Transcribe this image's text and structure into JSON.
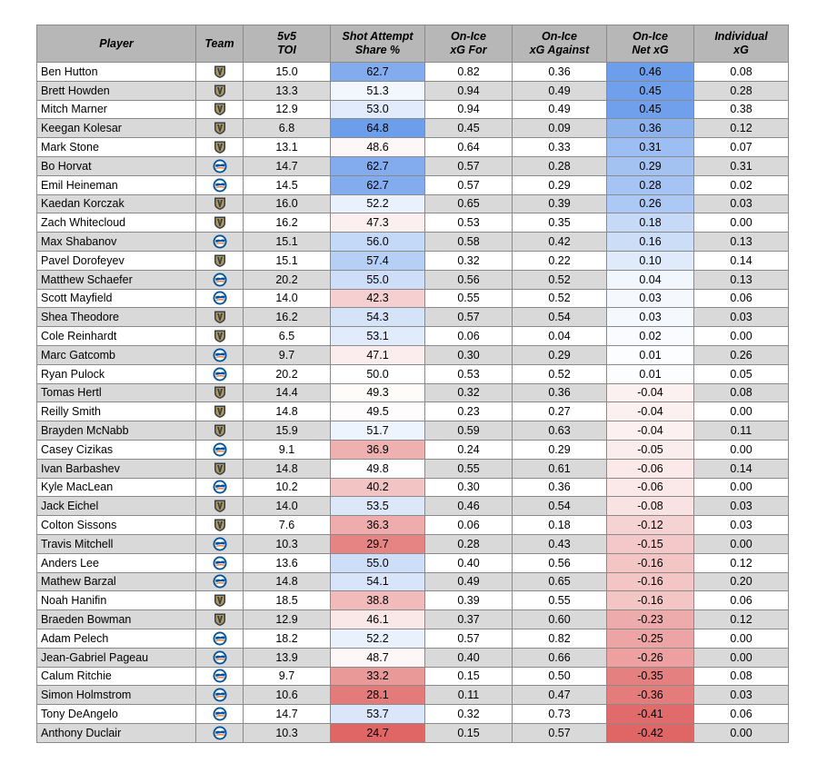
{
  "chart_data": {
    "type": "table",
    "columns": [
      "Player",
      "Team",
      "5v5\nTOI",
      "Shot Attempt\nShare %",
      "On-Ice\nxG For",
      "On-Ice\nxG Against",
      "On-Ice\nNet xG",
      "Individual\nxG"
    ],
    "team_icons": {
      "VGK": "vegas-golden-knights-logo-icon",
      "NYI": "new-york-islanders-logo-icon"
    },
    "team_colors": {
      "VGK": "#333f48",
      "VGK_gold": "#b4975a",
      "NYI": "#00539b",
      "NYI_orange": "#f47d30"
    },
    "scale_colors": {
      "high": "#6d9eeb",
      "mid": "#ffffff",
      "low": "#e06666"
    },
    "rows": [
      {
        "player": "Ben Hutton",
        "team": "VGK",
        "toi": "15.0",
        "sat": "62.7",
        "xgf": "0.82",
        "xga": "0.36",
        "net": "0.46",
        "ixg": "0.08"
      },
      {
        "player": "Brett Howden",
        "team": "VGK",
        "toi": "13.3",
        "sat": "51.3",
        "xgf": "0.94",
        "xga": "0.49",
        "net": "0.45",
        "ixg": "0.28"
      },
      {
        "player": "Mitch Marner",
        "team": "VGK",
        "toi": "12.9",
        "sat": "53.0",
        "xgf": "0.94",
        "xga": "0.49",
        "net": "0.45",
        "ixg": "0.38"
      },
      {
        "player": "Keegan Kolesar",
        "team": "VGK",
        "toi": "6.8",
        "sat": "64.8",
        "xgf": "0.45",
        "xga": "0.09",
        "net": "0.36",
        "ixg": "0.12"
      },
      {
        "player": "Mark Stone",
        "team": "VGK",
        "toi": "13.1",
        "sat": "48.6",
        "xgf": "0.64",
        "xga": "0.33",
        "net": "0.31",
        "ixg": "0.07"
      },
      {
        "player": "Bo Horvat",
        "team": "NYI",
        "toi": "14.7",
        "sat": "62.7",
        "xgf": "0.57",
        "xga": "0.28",
        "net": "0.29",
        "ixg": "0.31"
      },
      {
        "player": "Emil Heineman",
        "team": "NYI",
        "toi": "14.5",
        "sat": "62.7",
        "xgf": "0.57",
        "xga": "0.29",
        "net": "0.28",
        "ixg": "0.02"
      },
      {
        "player": "Kaedan Korczak",
        "team": "VGK",
        "toi": "16.0",
        "sat": "52.2",
        "xgf": "0.65",
        "xga": "0.39",
        "net": "0.26",
        "ixg": "0.03"
      },
      {
        "player": "Zach Whitecloud",
        "team": "VGK",
        "toi": "16.2",
        "sat": "47.3",
        "xgf": "0.53",
        "xga": "0.35",
        "net": "0.18",
        "ixg": "0.00"
      },
      {
        "player": "Max Shabanov",
        "team": "NYI",
        "toi": "15.1",
        "sat": "56.0",
        "xgf": "0.58",
        "xga": "0.42",
        "net": "0.16",
        "ixg": "0.13"
      },
      {
        "player": "Pavel Dorofeyev",
        "team": "VGK",
        "toi": "15.1",
        "sat": "57.4",
        "xgf": "0.32",
        "xga": "0.22",
        "net": "0.10",
        "ixg": "0.14"
      },
      {
        "player": "Matthew Schaefer",
        "team": "NYI",
        "toi": "20.2",
        "sat": "55.0",
        "xgf": "0.56",
        "xga": "0.52",
        "net": "0.04",
        "ixg": "0.13"
      },
      {
        "player": "Scott Mayfield",
        "team": "NYI",
        "toi": "14.0",
        "sat": "42.3",
        "xgf": "0.55",
        "xga": "0.52",
        "net": "0.03",
        "ixg": "0.06"
      },
      {
        "player": "Shea Theodore",
        "team": "VGK",
        "toi": "16.2",
        "sat": "54.3",
        "xgf": "0.57",
        "xga": "0.54",
        "net": "0.03",
        "ixg": "0.03"
      },
      {
        "player": "Cole Reinhardt",
        "team": "VGK",
        "toi": "6.5",
        "sat": "53.1",
        "xgf": "0.06",
        "xga": "0.04",
        "net": "0.02",
        "ixg": "0.00"
      },
      {
        "player": "Marc Gatcomb",
        "team": "NYI",
        "toi": "9.7",
        "sat": "47.1",
        "xgf": "0.30",
        "xga": "0.29",
        "net": "0.01",
        "ixg": "0.26"
      },
      {
        "player": "Ryan Pulock",
        "team": "NYI",
        "toi": "20.2",
        "sat": "50.0",
        "xgf": "0.53",
        "xga": "0.52",
        "net": "0.01",
        "ixg": "0.05"
      },
      {
        "player": "Tomas Hertl",
        "team": "VGK",
        "toi": "14.4",
        "sat": "49.3",
        "xgf": "0.32",
        "xga": "0.36",
        "net": "-0.04",
        "ixg": "0.08"
      },
      {
        "player": "Reilly Smith",
        "team": "VGK",
        "toi": "14.8",
        "sat": "49.5",
        "xgf": "0.23",
        "xga": "0.27",
        "net": "-0.04",
        "ixg": "0.00"
      },
      {
        "player": "Brayden McNabb",
        "team": "VGK",
        "toi": "15.9",
        "sat": "51.7",
        "xgf": "0.59",
        "xga": "0.63",
        "net": "-0.04",
        "ixg": "0.11"
      },
      {
        "player": "Casey Cizikas",
        "team": "NYI",
        "toi": "9.1",
        "sat": "36.9",
        "xgf": "0.24",
        "xga": "0.29",
        "net": "-0.05",
        "ixg": "0.00"
      },
      {
        "player": "Ivan Barbashev",
        "team": "VGK",
        "toi": "14.8",
        "sat": "49.8",
        "xgf": "0.55",
        "xga": "0.61",
        "net": "-0.06",
        "ixg": "0.14"
      },
      {
        "player": "Kyle MacLean",
        "team": "NYI",
        "toi": "10.2",
        "sat": "40.2",
        "xgf": "0.30",
        "xga": "0.36",
        "net": "-0.06",
        "ixg": "0.00"
      },
      {
        "player": "Jack Eichel",
        "team": "VGK",
        "toi": "14.0",
        "sat": "53.5",
        "xgf": "0.46",
        "xga": "0.54",
        "net": "-0.08",
        "ixg": "0.03"
      },
      {
        "player": "Colton Sissons",
        "team": "VGK",
        "toi": "7.6",
        "sat": "36.3",
        "xgf": "0.06",
        "xga": "0.18",
        "net": "-0.12",
        "ixg": "0.03"
      },
      {
        "player": "Travis Mitchell",
        "team": "NYI",
        "toi": "10.3",
        "sat": "29.7",
        "xgf": "0.28",
        "xga": "0.43",
        "net": "-0.15",
        "ixg": "0.00"
      },
      {
        "player": "Anders Lee",
        "team": "NYI",
        "toi": "13.6",
        "sat": "55.0",
        "xgf": "0.40",
        "xga": "0.56",
        "net": "-0.16",
        "ixg": "0.12"
      },
      {
        "player": "Mathew Barzal",
        "team": "NYI",
        "toi": "14.8",
        "sat": "54.1",
        "xgf": "0.49",
        "xga": "0.65",
        "net": "-0.16",
        "ixg": "0.20"
      },
      {
        "player": "Noah Hanifin",
        "team": "VGK",
        "toi": "18.5",
        "sat": "38.8",
        "xgf": "0.39",
        "xga": "0.55",
        "net": "-0.16",
        "ixg": "0.06"
      },
      {
        "player": "Braeden Bowman",
        "team": "VGK",
        "toi": "12.9",
        "sat": "46.1",
        "xgf": "0.37",
        "xga": "0.60",
        "net": "-0.23",
        "ixg": "0.12"
      },
      {
        "player": "Adam Pelech",
        "team": "NYI",
        "toi": "18.2",
        "sat": "52.2",
        "xgf": "0.57",
        "xga": "0.82",
        "net": "-0.25",
        "ixg": "0.00"
      },
      {
        "player": "Jean-Gabriel Pageau",
        "team": "NYI",
        "toi": "13.9",
        "sat": "48.7",
        "xgf": "0.40",
        "xga": "0.66",
        "net": "-0.26",
        "ixg": "0.00"
      },
      {
        "player": "Calum Ritchie",
        "team": "NYI",
        "toi": "9.7",
        "sat": "33.2",
        "xgf": "0.15",
        "xga": "0.50",
        "net": "-0.35",
        "ixg": "0.08"
      },
      {
        "player": "Simon Holmstrom",
        "team": "NYI",
        "toi": "10.6",
        "sat": "28.1",
        "xgf": "0.11",
        "xga": "0.47",
        "net": "-0.36",
        "ixg": "0.03"
      },
      {
        "player": "Tony DeAngelo",
        "team": "NYI",
        "toi": "14.7",
        "sat": "53.7",
        "xgf": "0.32",
        "xga": "0.73",
        "net": "-0.41",
        "ixg": "0.06"
      },
      {
        "player": "Anthony Duclair",
        "team": "NYI",
        "toi": "10.3",
        "sat": "24.7",
        "xgf": "0.15",
        "xga": "0.57",
        "net": "-0.42",
        "ixg": "0.00"
      }
    ]
  }
}
